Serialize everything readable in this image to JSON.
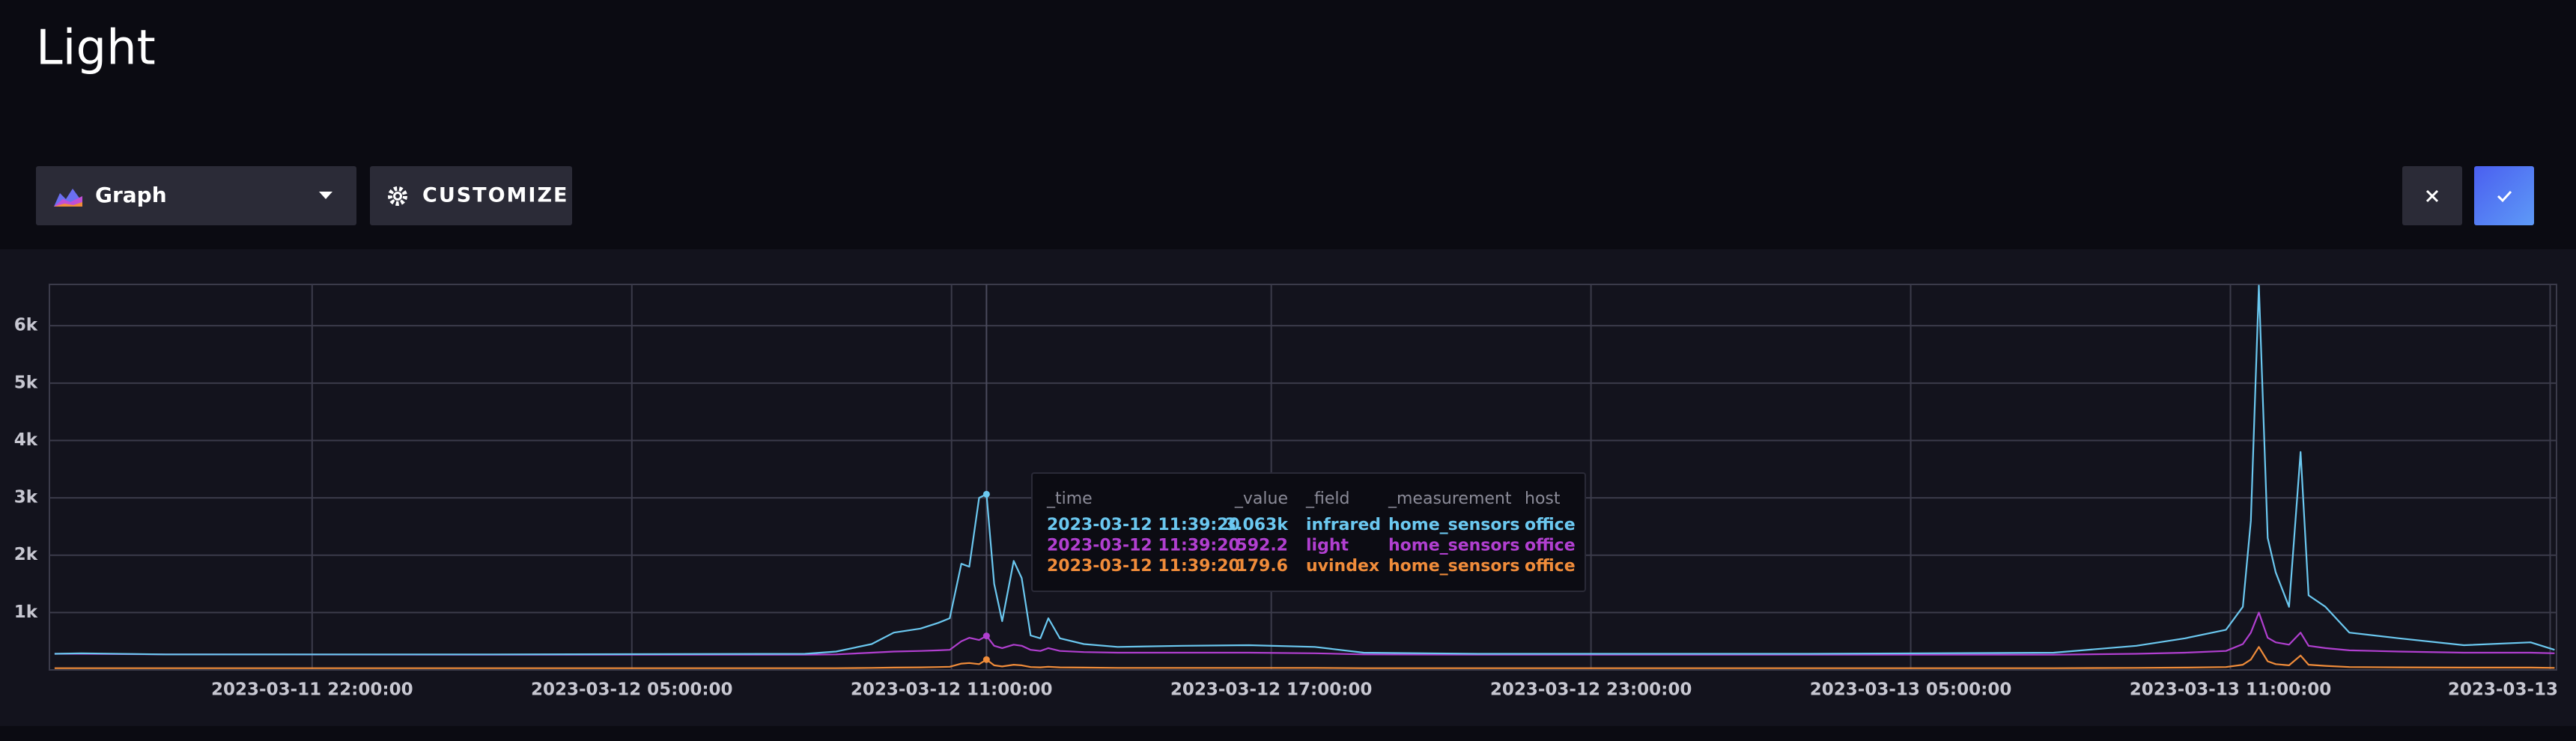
{
  "header": {
    "title": "Light"
  },
  "toolbar": {
    "view_type": "Graph",
    "customize": "CUSTOMIZE"
  },
  "chart_data": {
    "type": "line",
    "x": [
      1678583400000,
      1678585200000,
      1678590900000,
      1678613100000,
      1678634100000,
      1678636200000,
      1678638600000,
      1678640100000,
      1678641900000,
      1678643100000,
      1678643880000,
      1678644660000,
      1678645200000,
      1678645860000,
      1678646360000,
      1678646880000,
      1678647420000,
      1678648200000,
      1678648740000,
      1678649340000,
      1678650000000,
      1678650540000,
      1678651320000,
      1678652940000,
      1678655220000,
      1678659600000,
      1678664100000,
      1678668540000,
      1678671840000,
      1678679580000,
      1678701840000,
      1678718460000,
      1678724040000,
      1678727340000,
      1678730100000,
      1678731240000,
      1678731780000,
      1678732320000,
      1678732920000,
      1678733460000,
      1678734360000,
      1678735140000,
      1678735680000,
      1678736820000,
      1678738440000,
      1678741800000,
      1678746180000,
      1678750680000,
      1678752300000
    ],
    "series": [
      {
        "name": "infrared",
        "color": "#6bc8f0",
        "values": [
          280,
          290,
          270,
          270,
          280,
          320,
          450,
          650,
          720,
          820,
          900,
          1850,
          1800,
          3000,
          3063,
          1500,
          850,
          1900,
          1600,
          600,
          550,
          900,
          550,
          450,
          400,
          420,
          430,
          400,
          300,
          280,
          280,
          300,
          420,
          550,
          700,
          1100,
          2600,
          6700,
          2300,
          1700,
          1100,
          3800,
          1300,
          1100,
          650,
          550,
          430,
          480,
          350
        ]
      },
      {
        "name": "light",
        "color": "#b13fd0",
        "values": [
          280,
          280,
          270,
          265,
          265,
          270,
          300,
          320,
          330,
          340,
          350,
          500,
          560,
          520,
          592.2,
          420,
          380,
          440,
          420,
          350,
          330,
          380,
          330,
          310,
          300,
          300,
          300,
          290,
          270,
          265,
          265,
          265,
          280,
          300,
          330,
          450,
          650,
          1000,
          560,
          480,
          440,
          650,
          420,
          380,
          340,
          320,
          300,
          300,
          290
        ]
      },
      {
        "name": "uvindex",
        "color": "#f08c3a",
        "values": [
          30,
          30,
          30,
          30,
          30,
          30,
          35,
          40,
          45,
          50,
          55,
          110,
          120,
          100,
          179.6,
          80,
          60,
          90,
          80,
          50,
          45,
          55,
          45,
          40,
          35,
          35,
          35,
          35,
          30,
          30,
          30,
          30,
          35,
          40,
          50,
          90,
          180,
          400,
          150,
          100,
          80,
          250,
          90,
          70,
          50,
          45,
          40,
          40,
          35
        ]
      }
    ],
    "xlim": [
      1678583052000,
      1678752432000
    ],
    "xticks": [
      {
        "value": 1678600800000,
        "label": "2023-03-11 22:00:00"
      },
      {
        "value": 1678622400000,
        "label": "2023-03-12 05:00:00"
      },
      {
        "value": 1678644000000,
        "label": "2023-03-12 11:00:00"
      },
      {
        "value": 1678665600000,
        "label": "2023-03-12 17:00:00"
      },
      {
        "value": 1678687200000,
        "label": "2023-03-12 23:00:00"
      },
      {
        "value": 1678708800000,
        "label": "2023-03-13 05:00:00"
      },
      {
        "value": 1678730400000,
        "label": "2023-03-13 11:00:00"
      },
      {
        "value": 1678752000000,
        "label": "2023-03-13"
      }
    ],
    "ylim": [
      0,
      6720
    ],
    "yticks": [
      {
        "value": 1000,
        "label": "1k"
      },
      {
        "value": 2000,
        "label": "2k"
      },
      {
        "value": 3000,
        "label": "3k"
      },
      {
        "value": 4000,
        "label": "4k"
      },
      {
        "value": 5000,
        "label": "5k"
      },
      {
        "value": 6000,
        "label": "6k"
      }
    ],
    "grid": true,
    "tooltip": {
      "columns": [
        "_time",
        "_value",
        "_field",
        "_measurement",
        "host"
      ],
      "time": "2023-03-12 11:39:20",
      "hover_x": 1678646360000,
      "rows": [
        {
          "value": "3.063k",
          "measurement": "home_sensors",
          "host": "office"
        },
        {
          "value": "592.2",
          "measurement": "home_sensors",
          "host": "office"
        },
        {
          "value": "179.6",
          "measurement": "home_sensors",
          "host": "office"
        }
      ]
    }
  }
}
